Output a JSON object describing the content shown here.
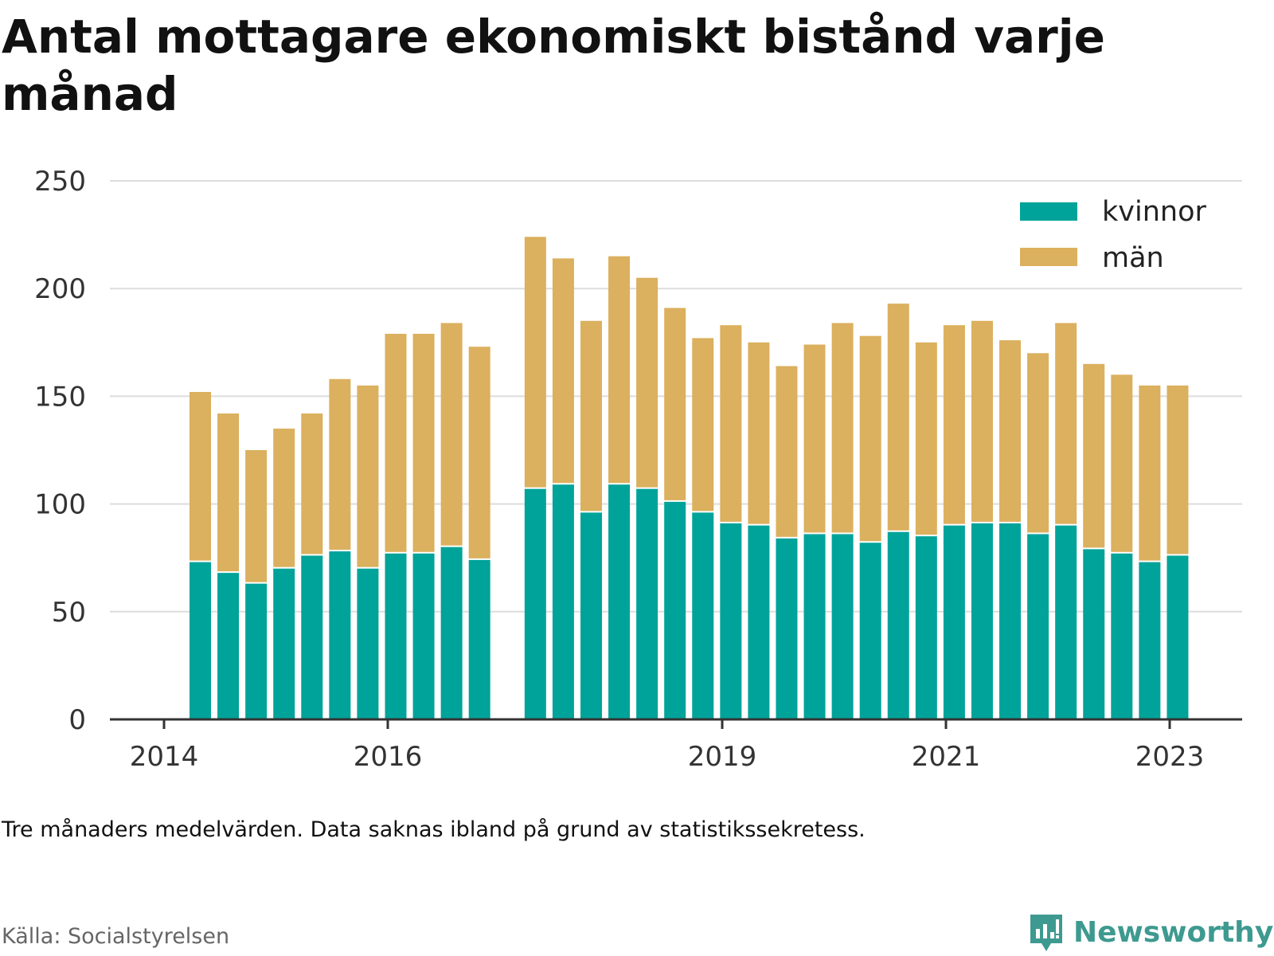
{
  "title": "Antal mottagare ekonomiskt bistånd varje månad",
  "note": "Tre månaders medelvärden. Data saknas ibland på grund av statistikssekretess.",
  "source": "Källa: Socialstyrelsen",
  "brand": "Newsworthy",
  "colors": {
    "kvinnor": "#00a399",
    "man": "#dbb05e",
    "grid": "#dddddd",
    "axis": "#333333",
    "text": "#333333",
    "brand": "#3e9a90"
  },
  "chart_data": {
    "type": "bar",
    "stacked": true,
    "ylim": [
      0,
      250
    ],
    "yticks": [
      0,
      50,
      100,
      150,
      200,
      250
    ],
    "xticks": [
      "2014",
      "2016",
      "2019",
      "2021",
      "2023"
    ],
    "grid": true,
    "legend_position": "top-right",
    "series": [
      {
        "name": "kvinnor",
        "color": "#00a399",
        "values": [
          73,
          68,
          63,
          70,
          76,
          78,
          70,
          77,
          77,
          80,
          74,
          107,
          109,
          96,
          109,
          107,
          101,
          96,
          91,
          90,
          84,
          86,
          86,
          82,
          87,
          85,
          90,
          91,
          91,
          86,
          90,
          79,
          77,
          73,
          76
        ]
      },
      {
        "name": "män",
        "color": "#dbb05e",
        "values": [
          79,
          74,
          62,
          65,
          66,
          80,
          85,
          102,
          102,
          104,
          99,
          117,
          105,
          89,
          106,
          98,
          90,
          81,
          92,
          85,
          80,
          88,
          98,
          96,
          106,
          90,
          93,
          94,
          85,
          84,
          94,
          86,
          83,
          82,
          79
        ]
      }
    ]
  }
}
